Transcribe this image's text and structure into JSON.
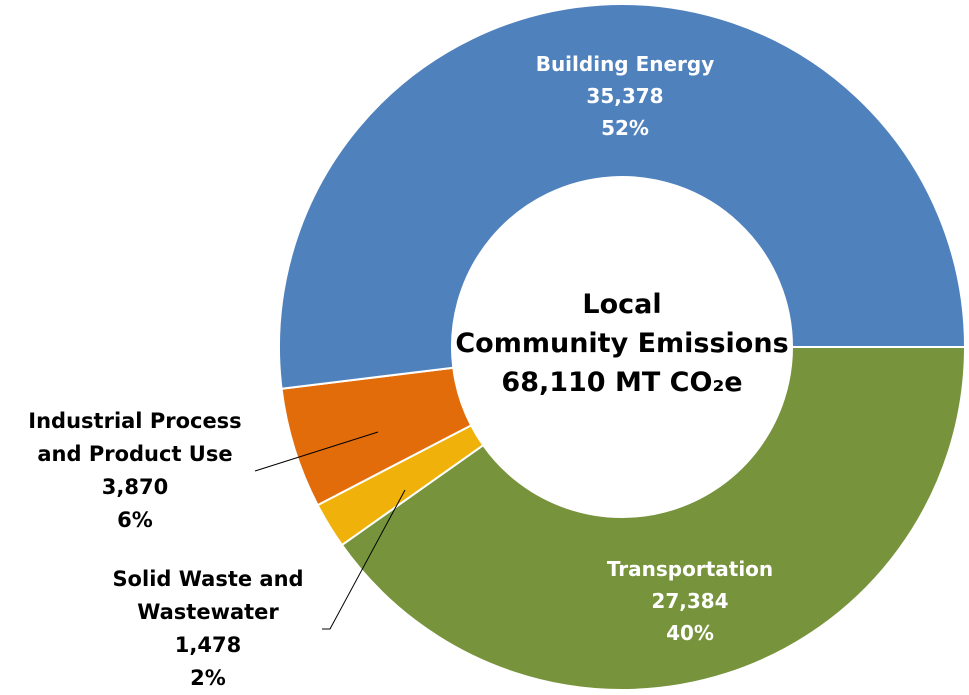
{
  "chart_data": {
    "type": "donut",
    "categories": [
      "Transportation",
      "Solid Waste and Wastewater",
      "Industrial Process and Product Use",
      "Building Energy"
    ],
    "values": [
      27384,
      1478,
      3870,
      35378
    ],
    "value_labels": [
      "27,384",
      "1,478",
      "3,870",
      "35,378"
    ],
    "percent_labels": [
      "40%",
      "2%",
      "6%",
      "52%"
    ],
    "colors": [
      "#77933c",
      "#f0b20a",
      "#e36c0a",
      "#4f81bd"
    ],
    "center_text": [
      "Local",
      "Community Emissions",
      "68,110 MT CO₂e"
    ]
  }
}
